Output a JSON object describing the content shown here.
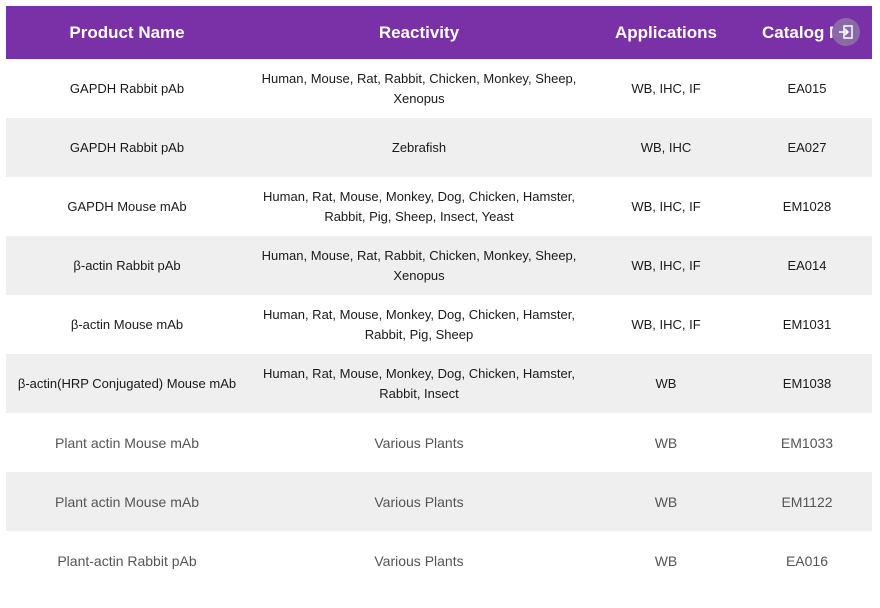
{
  "header": {
    "product_name": "Product Name",
    "reactivity": "Reactivity",
    "applications": "Applications",
    "catalog": "Catalog No."
  },
  "exit_icon": "exit-icon",
  "colors": {
    "header_bg": "#7a31a8",
    "row_shaded": "#efefef"
  },
  "rows": [
    {
      "product": "GAPDH Rabbit pAb",
      "reactivity": "Human, Mouse, Rat, Rabbit, Chicken, Monkey, Sheep, Xenopus",
      "applications": "WB, IHC, IF",
      "catalog": "EA015"
    },
    {
      "product": "GAPDH Rabbit pAb",
      "reactivity": "Zebrafish",
      "applications": "WB, IHC",
      "catalog": "EA027"
    },
    {
      "product": "GAPDH Mouse mAb",
      "reactivity": "Human, Rat, Mouse, Monkey, Dog, Chicken, Hamster, Rabbit, Pig, Sheep, Insect, Yeast",
      "applications": "WB, IHC, IF",
      "catalog": "EM1028"
    },
    {
      "product": "β-actin Rabbit pAb",
      "reactivity": "Human, Mouse, Rat, Rabbit, Chicken, Monkey, Sheep, Xenopus",
      "applications": "WB, IHC, IF",
      "catalog": "EA014"
    },
    {
      "product": "β-actin Mouse mAb",
      "reactivity": "Human, Rat, Mouse, Monkey, Dog, Chicken, Hamster, Rabbit, Pig, Sheep",
      "applications": "WB, IHC, IF",
      "catalog": "EM1031"
    },
    {
      "product": "β-actin(HRP Conjugated) Mouse mAb",
      "reactivity": "Human, Rat, Mouse, Monkey, Dog, Chicken, Hamster, Rabbit, Insect",
      "applications": "WB",
      "catalog": "EM1038"
    },
    {
      "product": "Plant actin Mouse mAb",
      "reactivity": "Various Plants",
      "applications": "WB",
      "catalog": "EM1033"
    },
    {
      "product": "Plant actin Mouse mAb",
      "reactivity": "Various Plants",
      "applications": "WB",
      "catalog": "EM1122"
    },
    {
      "product": "Plant-actin Rabbit pAb",
      "reactivity": "Various Plants",
      "applications": "WB",
      "catalog": "EA016"
    }
  ]
}
